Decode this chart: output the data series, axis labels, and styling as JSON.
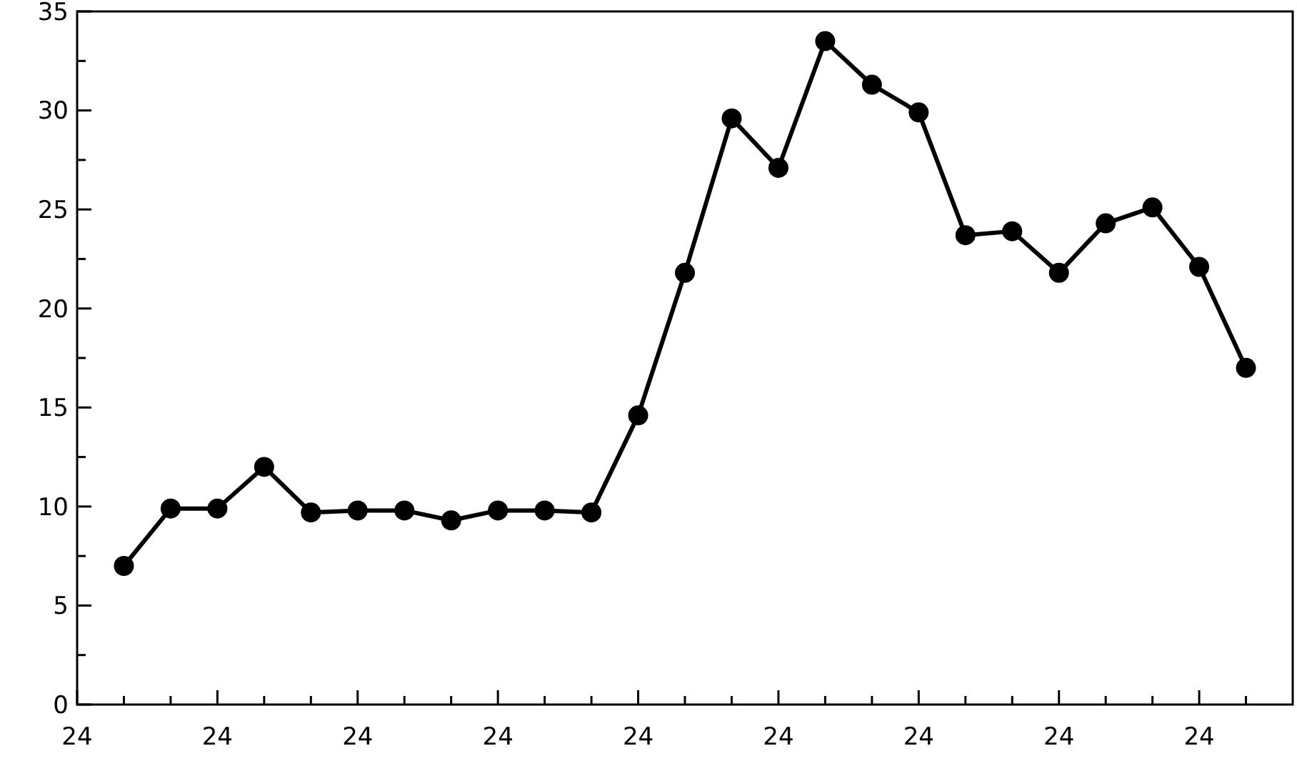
{
  "chart_data": {
    "type": "line",
    "categories": [
      "24",
      null,
      null,
      "24",
      null,
      null,
      "24",
      null,
      null,
      "24",
      null,
      null,
      "24",
      null,
      null,
      "24",
      null,
      null,
      "24",
      null,
      null,
      "24",
      null,
      null,
      "24",
      null
    ],
    "series": [
      {
        "color": "#000000",
        "values": [
          null,
          7,
          9.9,
          9.9,
          12,
          9.7,
          9.8,
          9.8,
          9.3,
          9.8,
          9.8,
          9.7,
          14.6,
          21.8,
          29.6,
          27.1,
          33.5,
          31.3,
          29.9,
          23.7,
          23.9,
          21.8,
          24.3,
          25.1,
          22.1,
          17
        ]
      }
    ],
    "ylim": [
      0,
      35
    ],
    "yticks": [
      0,
      {
        "value": 2.5,
        "label": null
      },
      5,
      {
        "value": 7.5,
        "label": null
      },
      10,
      {
        "value": 12.5,
        "label": null
      },
      15,
      {
        "value": 17.5,
        "label": null
      },
      20,
      {
        "value": 22.5,
        "label": null
      },
      25,
      {
        "value": 27.5,
        "label": null
      },
      30,
      {
        "value": 32.5,
        "label": null
      },
      35
    ],
    "marker": "circle",
    "line_style": "solid"
  }
}
